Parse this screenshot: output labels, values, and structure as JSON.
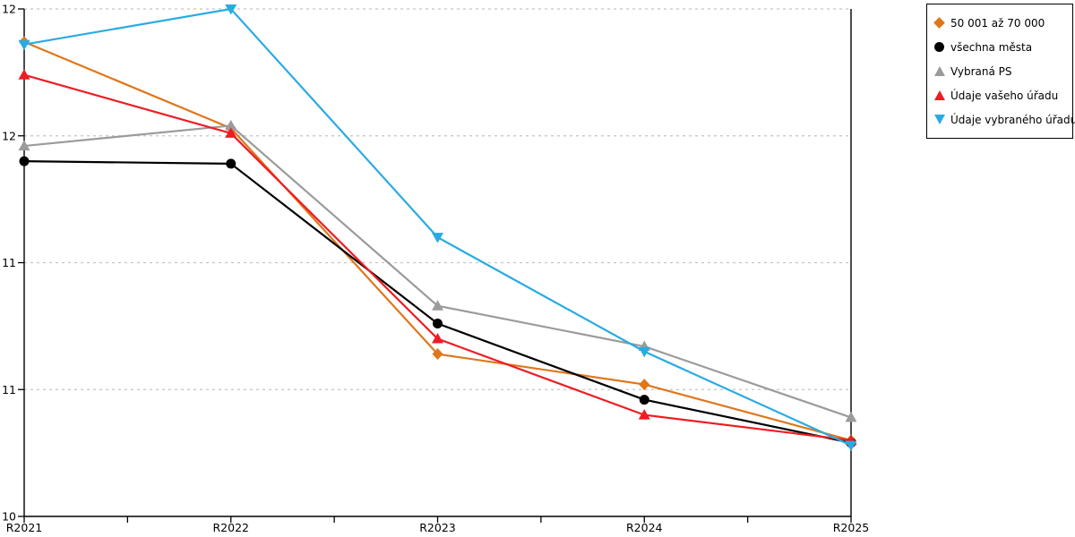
{
  "chart_data": {
    "type": "line",
    "title": "",
    "xlabel": "",
    "ylabel": "",
    "x_categories": [
      "R2021",
      "R2022",
      "R2023",
      "R2024",
      "R2025"
    ],
    "y_axis": {
      "min": 10,
      "max": 12,
      "tick_values": [
        10,
        10.5,
        11,
        11.5,
        12
      ],
      "tick_labels": [
        "10",
        "11",
        "11",
        "12",
        "12"
      ]
    },
    "grid": "horizontal-dashed",
    "gridline_color": "#c4c4c4",
    "axis_color": "#000000",
    "legend_position": "top-right",
    "series": [
      {
        "name": "50 001 až 70 000",
        "marker": "diamond",
        "color": "#E0761A",
        "values": [
          11.87,
          11.53,
          10.64,
          10.52,
          10.3
        ]
      },
      {
        "name": "všechna města",
        "marker": "circle",
        "color": "#000000",
        "values": [
          11.4,
          11.39,
          10.76,
          10.46,
          10.29
        ]
      },
      {
        "name": "Vybraná PS",
        "marker": "triangle-up",
        "color": "#9B9B9B",
        "values": [
          11.46,
          11.54,
          10.83,
          10.67,
          10.39
        ]
      },
      {
        "name": "Údaje vašeho úřadu",
        "marker": "triangle-up",
        "color": "#EE1C23",
        "values": [
          11.74,
          11.51,
          10.7,
          10.4,
          10.3
        ]
      },
      {
        "name": "Údaje vybraného úřadu",
        "marker": "triangle-down",
        "color": "#29ABE2",
        "values": [
          11.86,
          12.0,
          11.1,
          10.65,
          10.28
        ]
      }
    ]
  }
}
